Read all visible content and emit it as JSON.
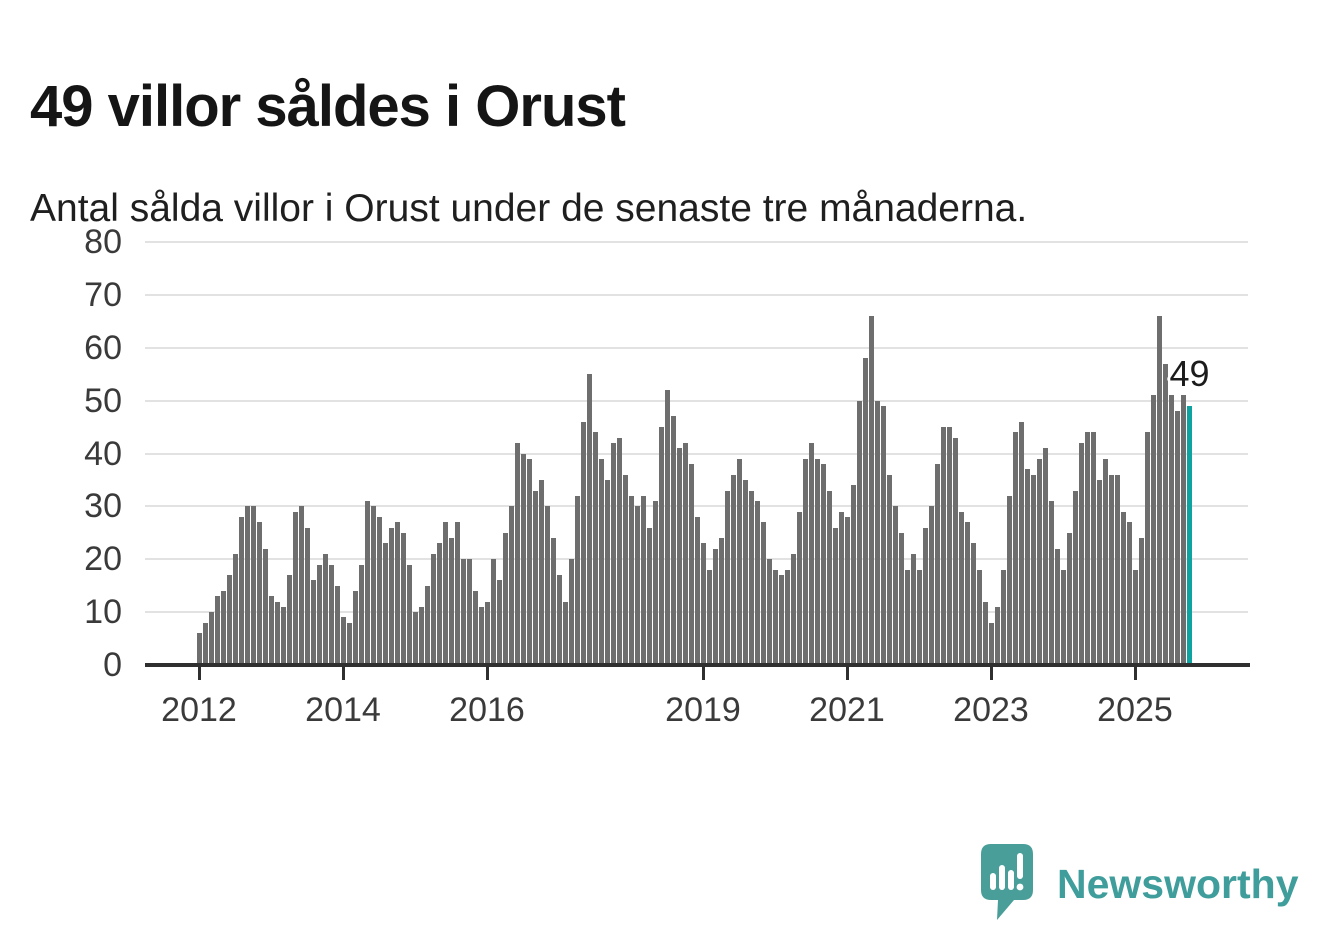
{
  "header": {
    "title": "49 villor såldes i Orust",
    "subtitle": "Antal sålda villor i Orust under de senaste tre månaderna."
  },
  "chart_data": {
    "type": "bar",
    "title": "49 villor såldes i Orust",
    "subtitle": "Antal sålda villor i Orust under de senaste tre månaderna.",
    "x_start": "2012-01",
    "x_freq": "monthly",
    "n_points": 166,
    "values": [
      6,
      8,
      10,
      13,
      14,
      17,
      21,
      28,
      30,
      30,
      27,
      22,
      13,
      12,
      11,
      17,
      29,
      30,
      26,
      16,
      19,
      21,
      19,
      15,
      9,
      8,
      14,
      19,
      31,
      30,
      28,
      23,
      26,
      27,
      25,
      19,
      10,
      11,
      15,
      21,
      23,
      27,
      24,
      27,
      20,
      20,
      14,
      11,
      12,
      20,
      16,
      25,
      30,
      42,
      40,
      39,
      33,
      35,
      30,
      24,
      17,
      12,
      20,
      32,
      46,
      55,
      44,
      39,
      35,
      42,
      43,
      36,
      32,
      30,
      32,
      26,
      31,
      45,
      52,
      47,
      41,
      42,
      38,
      28,
      23,
      18,
      22,
      24,
      33,
      36,
      39,
      35,
      33,
      31,
      27,
      20,
      18,
      17,
      18,
      21,
      29,
      39,
      42,
      39,
      38,
      33,
      26,
      29,
      28,
      34,
      50,
      58,
      66,
      50,
      49,
      36,
      30,
      25,
      18,
      21,
      18,
      26,
      30,
      38,
      45,
      45,
      43,
      29,
      27,
      23,
      18,
      12,
      8,
      11,
      18,
      32,
      44,
      46,
      37,
      36,
      39,
      41,
      31,
      22,
      18,
      25,
      33,
      42,
      44,
      44,
      35,
      39,
      36,
      36,
      29,
      27,
      18,
      24,
      44,
      51,
      66,
      57,
      51,
      48,
      51,
      49
    ],
    "ylim": [
      0,
      80
    ],
    "yticks": [
      0,
      10,
      20,
      30,
      40,
      50,
      60,
      70,
      80
    ],
    "xticks": [
      {
        "label": "2012",
        "month_index": 0
      },
      {
        "label": "2014",
        "month_index": 24
      },
      {
        "label": "2016",
        "month_index": 48
      },
      {
        "label": "2019",
        "month_index": 84
      },
      {
        "label": "2021",
        "month_index": 108
      },
      {
        "label": "2023",
        "month_index": 132
      },
      {
        "label": "2025",
        "month_index": 156
      }
    ],
    "grid": true,
    "legend": false,
    "bar_color": "#6e6e6e",
    "highlight": {
      "index": 165,
      "value": 49,
      "label": "49",
      "color": "#0ea2a0"
    }
  },
  "footer": {
    "brand": "Newsworthy",
    "brand_color": "#3f9e9b",
    "logo_color": "#4a9e99"
  },
  "colors": {
    "background": "#ffffff",
    "title": "#151515",
    "subtitle": "#1f1f1f",
    "axis_labels": "#3a3a3a",
    "gridline": "#e2e2e2",
    "axis_line": "#2f2f2f",
    "bar": "#6e6e6e",
    "highlight_bar": "#0ea2a0",
    "annotation": "#1c1c1c"
  }
}
